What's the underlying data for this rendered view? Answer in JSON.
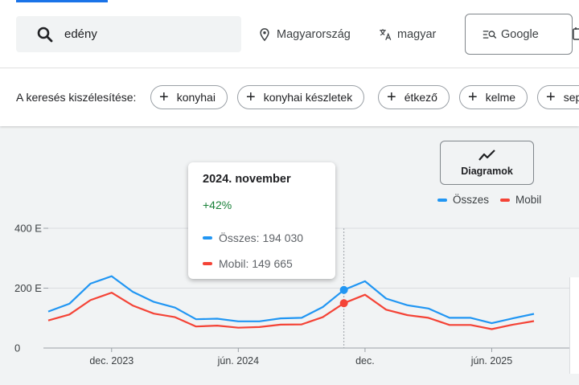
{
  "search": {
    "query": "edény"
  },
  "filters": {
    "location": "Magyarország",
    "language": "magyar",
    "engine": "Google"
  },
  "refine": {
    "label": "A keresés kiszélesítése:",
    "chips": [
      "konyhai",
      "konyhai készletek",
      "étkező",
      "kelme",
      "sep"
    ]
  },
  "chart_controls": {
    "diagrams_label": "Diagramok"
  },
  "legend": {
    "all": "Összes",
    "mobile": "Mobil"
  },
  "colors": {
    "all": "#2196f3",
    "mobile": "#f44336",
    "accent": "#1a73e8",
    "positive": "#188038"
  },
  "tooltip": {
    "title": "2024. november",
    "change": "+42%",
    "all_line": "Összes: 194 030",
    "mobile_line": "Mobil: 149 665"
  },
  "chart_data": {
    "type": "line",
    "x": [
      "2023-09",
      "2023-10",
      "2023-11",
      "2023-12",
      "2024-01",
      "2024-02",
      "2024-03",
      "2024-04",
      "2024-05",
      "2024-06",
      "2024-07",
      "2024-08",
      "2024-09",
      "2024-10",
      "2024-11",
      "2024-12",
      "2025-01",
      "2025-02",
      "2025-03",
      "2025-04",
      "2025-05",
      "2025-06",
      "2025-07",
      "2025-08"
    ],
    "series": [
      {
        "name": "Összes",
        "values": [
          122000,
          148000,
          215000,
          240000,
          188000,
          154000,
          135000,
          96000,
          98000,
          89000,
          89000,
          99000,
          101000,
          137000,
          194030,
          223000,
          165000,
          143000,
          132000,
          101000,
          101000,
          83000,
          99000,
          114000
        ]
      },
      {
        "name": "Mobil",
        "values": [
          92000,
          112000,
          160000,
          185000,
          142000,
          115000,
          103000,
          72000,
          75000,
          68000,
          70000,
          78000,
          79000,
          103000,
          149665,
          178000,
          128000,
          110000,
          101000,
          77000,
          77000,
          63000,
          78000,
          90000
        ]
      }
    ],
    "y_ticks": [
      0,
      200000,
      400000
    ],
    "y_tick_labels": [
      "0",
      "200 E",
      "400 E"
    ],
    "x_tick_labels": [
      "dec. 2023",
      "jún. 2024",
      "dec.",
      "jún. 2025"
    ],
    "x_tick_index": [
      3,
      9,
      15,
      21
    ],
    "ylim": [
      0,
      400000
    ],
    "highlight_index": 14,
    "grid": true,
    "legend_position": "top-right"
  }
}
